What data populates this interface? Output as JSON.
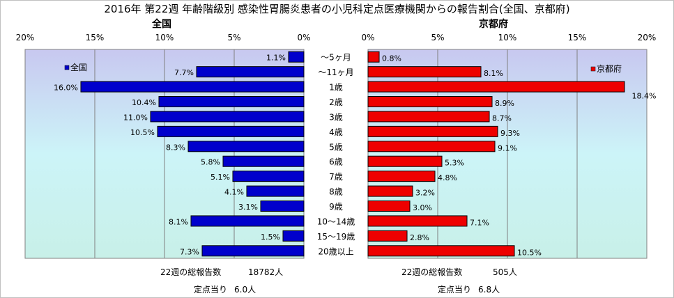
{
  "title": "2016年 第22週 年齢階級別 感染性胃腸炎患者の小児科定点医療機関からの報告割合(全国、京都府)",
  "colors": {
    "national": "#0000cc",
    "kyoto": "#ee0000",
    "axis": "#808080"
  },
  "chart_data": [
    {
      "type": "bar",
      "orientation": "horizontal",
      "title": "全国",
      "legend": "全国",
      "legend_position": "top-left",
      "axis_reversed": true,
      "xlim": [
        0,
        20
      ],
      "ticks": [
        "0%",
        "5%",
        "10%",
        "15%",
        "20%"
      ],
      "categories": [
        "～5ヶ月",
        "～11ヶ月",
        "1歳",
        "2歳",
        "3歳",
        "4歳",
        "5歳",
        "6歳",
        "7歳",
        "8歳",
        "9歳",
        "10～14歳",
        "15～19歳",
        "20歳以上"
      ],
      "values": [
        1.1,
        7.7,
        16.0,
        10.4,
        11.0,
        10.5,
        8.3,
        5.8,
        5.1,
        4.1,
        3.1,
        8.1,
        1.5,
        7.3
      ],
      "labels": [
        "1.1%",
        "7.7%",
        "16.0%",
        "10.4%",
        "11.0%",
        "10.5%",
        "8.3%",
        "5.8%",
        "5.1%",
        "4.1%",
        "3.1%",
        "8.1%",
        "1.5%",
        "7.3%"
      ],
      "summary": {
        "total_label": "22週の総報告数",
        "total_value": "18782人",
        "per_label": "定点当り",
        "per_value": "6.0人"
      }
    },
    {
      "type": "bar",
      "orientation": "horizontal",
      "title": "京都府",
      "legend": "京都府",
      "legend_position": "top-right",
      "xlim": [
        0,
        20
      ],
      "ticks": [
        "0%",
        "5%",
        "10%",
        "15%",
        "20%"
      ],
      "values": [
        0.8,
        8.1,
        18.4,
        8.9,
        8.7,
        9.3,
        9.1,
        5.3,
        4.8,
        3.2,
        3.0,
        7.1,
        2.8,
        10.5
      ],
      "labels": [
        "0.8%",
        "8.1%",
        "18.4%",
        "8.9%",
        "8.7%",
        "9.3%",
        "9.1%",
        "5.3%",
        "4.8%",
        "3.2%",
        "3.0%",
        "7.1%",
        "2.8%",
        "10.5%"
      ],
      "summary": {
        "total_label": "22週の総報告数",
        "total_value": "505人",
        "per_label": "定点当り",
        "per_value": "6.8人"
      }
    }
  ]
}
